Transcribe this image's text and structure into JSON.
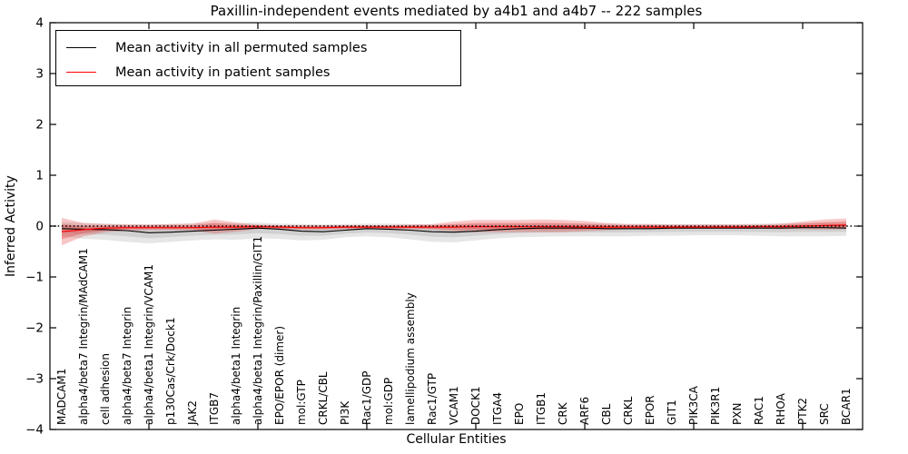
{
  "chart_data": {
    "type": "line",
    "title": "Paxillin-independent events mediated by a4b1 and a4b7 -- 222 samples",
    "xlabel": "Cellular Entities",
    "ylabel": "Inferred Activity",
    "ylim": [
      -4,
      4
    ],
    "yticks": [
      4,
      3,
      2,
      1,
      0,
      -1,
      -2,
      -3,
      -4
    ],
    "x_major_tick_indices": [
      4,
      9,
      14,
      19,
      24,
      29,
      34
    ],
    "grid": false,
    "legend_position": "upper-left",
    "zero_line": {
      "value": 0,
      "style": "dotted",
      "color": "#000000"
    },
    "categories": [
      "MADCAM1",
      "alpha4/beta7 Integrin/MAdCAM1",
      "cell adhesion",
      "alpha4/beta7 Integrin",
      "alpha4/beta1 Integrin/VCAM1",
      "p130Cas/Crk/Dock1",
      "JAK2",
      "ITGB7",
      "alpha4/beta1 Integrin",
      "alpha4/beta1 Integrin/Paxillin/GIT1",
      "EPO/EPOR (dimer)",
      "mol:GTP",
      "CRKL/CBL",
      "PI3K",
      "Rac1/GDP",
      "mol:GDP",
      "lamellipodium assembly",
      "Rac1/GTP",
      "VCAM1",
      "DOCK1",
      "ITGA4",
      "EPO",
      "ITGB1",
      "CRK",
      "ARF6",
      "CBL",
      "CRKL",
      "EPOR",
      "GIT1",
      "PIK3CA",
      "PIK3R1",
      "PXN",
      "RAC1",
      "RHOA",
      "PTK2",
      "SRC",
      "BCAR1"
    ],
    "series": [
      {
        "name": "Mean activity in all permuted samples",
        "color": "#000000",
        "band_color": "#555555",
        "values": [
          -0.05,
          -0.06,
          -0.07,
          -0.09,
          -0.13,
          -0.12,
          -0.1,
          -0.08,
          -0.06,
          -0.04,
          -0.06,
          -0.1,
          -0.11,
          -0.08,
          -0.05,
          -0.06,
          -0.08,
          -0.11,
          -0.12,
          -0.1,
          -0.07,
          -0.05,
          -0.04,
          -0.04,
          -0.04,
          -0.05,
          -0.05,
          -0.05,
          -0.04,
          -0.04,
          -0.04,
          -0.04,
          -0.04,
          -0.04,
          -0.03,
          -0.03,
          -0.04
        ],
        "band_upper": [
          0.08,
          0.06,
          0.05,
          0.04,
          0.03,
          0.04,
          0.05,
          0.06,
          0.06,
          0.07,
          0.05,
          0.04,
          0.03,
          0.04,
          0.05,
          0.05,
          0.04,
          0.03,
          0.03,
          0.04,
          0.05,
          0.05,
          0.05,
          0.05,
          0.05,
          0.05,
          0.04,
          0.04,
          0.04,
          0.04,
          0.04,
          0.04,
          0.05,
          0.05,
          0.06,
          0.06,
          0.06
        ],
        "band_lower": [
          -0.2,
          -0.25,
          -0.27,
          -0.31,
          -0.34,
          -0.31,
          -0.28,
          -0.26,
          -0.27,
          -0.24,
          -0.25,
          -0.28,
          -0.27,
          -0.22,
          -0.2,
          -0.22,
          -0.26,
          -0.31,
          -0.32,
          -0.28,
          -0.24,
          -0.22,
          -0.21,
          -0.2,
          -0.2,
          -0.2,
          -0.2,
          -0.19,
          -0.19,
          -0.18,
          -0.18,
          -0.18,
          -0.19,
          -0.2,
          -0.2,
          -0.2,
          -0.19
        ]
      },
      {
        "name": "Mean activity in patient samples",
        "color": "#ff0000",
        "band_color": "#e02020",
        "values": [
          -0.11,
          -0.07,
          -0.04,
          -0.03,
          -0.03,
          -0.03,
          -0.03,
          -0.02,
          -0.02,
          -0.01,
          -0.02,
          -0.03,
          -0.03,
          -0.02,
          -0.02,
          -0.02,
          -0.02,
          -0.02,
          -0.02,
          -0.01,
          -0.01,
          -0.01,
          -0.01,
          -0.01,
          -0.02,
          -0.02,
          -0.02,
          -0.02,
          -0.02,
          -0.02,
          -0.02,
          -0.02,
          -0.01,
          -0.01,
          0.0,
          0.01,
          0.02
        ],
        "band_upper": [
          0.16,
          0.06,
          0.04,
          0.03,
          0.03,
          0.04,
          0.05,
          0.13,
          0.07,
          0.03,
          0.02,
          0.02,
          0.02,
          0.02,
          0.02,
          0.02,
          0.03,
          0.04,
          0.09,
          0.12,
          0.12,
          0.12,
          0.13,
          0.12,
          0.1,
          0.06,
          0.04,
          0.04,
          0.03,
          0.03,
          0.03,
          0.03,
          0.03,
          0.05,
          0.09,
          0.13,
          0.15
        ],
        "band_lower": [
          -0.38,
          -0.2,
          -0.12,
          -0.09,
          -0.08,
          -0.08,
          -0.08,
          -0.15,
          -0.11,
          -0.06,
          -0.06,
          -0.07,
          -0.07,
          -0.06,
          -0.05,
          -0.06,
          -0.06,
          -0.07,
          -0.1,
          -0.12,
          -0.12,
          -0.12,
          -0.12,
          -0.12,
          -0.1,
          -0.08,
          -0.06,
          -0.06,
          -0.06,
          -0.05,
          -0.05,
          -0.05,
          -0.05,
          -0.06,
          -0.06,
          -0.07,
          -0.06
        ]
      }
    ]
  }
}
